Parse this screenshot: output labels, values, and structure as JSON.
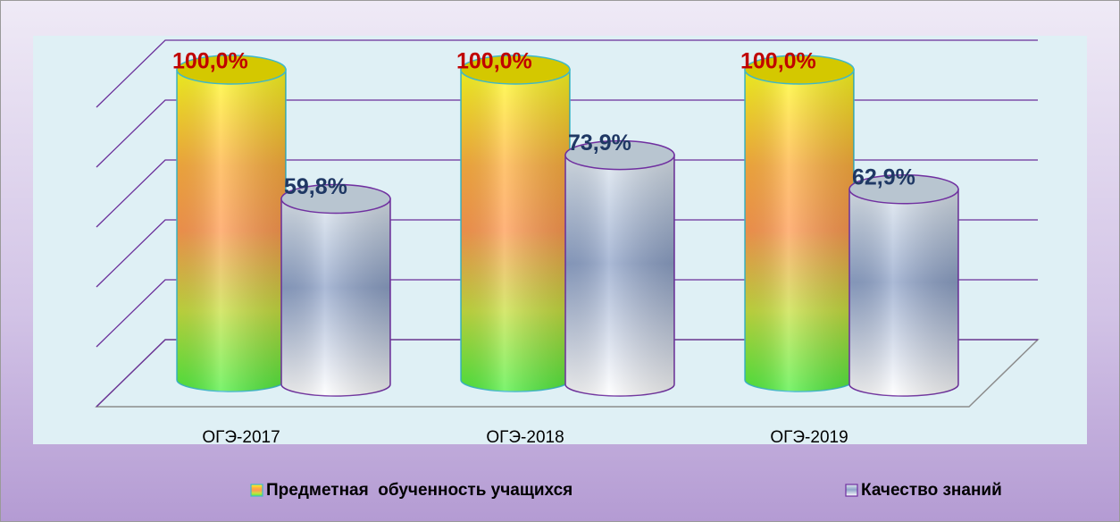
{
  "chart_data": {
    "type": "bar3d",
    "categories": [
      "ОГЭ-2017",
      "ОГЭ-2018",
      "ОГЭ-2019"
    ],
    "series": [
      {
        "name": "Предметная  обученность учащихся",
        "color": "#ff9a50",
        "label_color": "#c00000",
        "values": [
          100,
          100,
          100
        ],
        "value_labels": [
          "100,0%",
          "100,0%",
          "100,0%"
        ]
      },
      {
        "name": "Качество знаний",
        "color": "#8fa3c9",
        "label_color": "#1f3864",
        "values": [
          59.8,
          73.9,
          62.9
        ],
        "value_labels": [
          "59,8%",
          "73,9%",
          "62,9%"
        ]
      }
    ],
    "ylim": [
      0,
      100
    ],
    "yticks": [
      0,
      20,
      40,
      60,
      80,
      100
    ],
    "grid": true,
    "legend": "bottom"
  }
}
